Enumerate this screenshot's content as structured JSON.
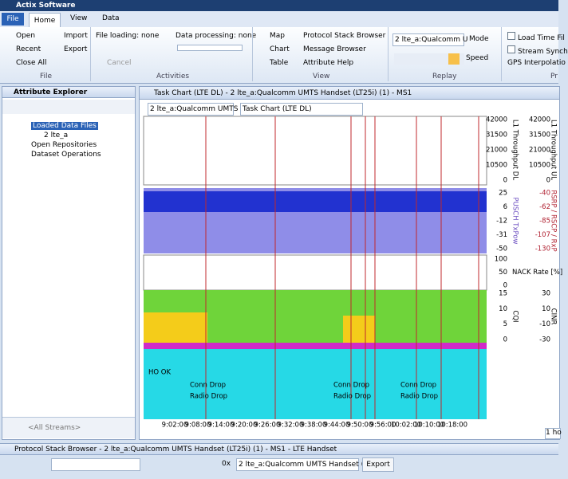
{
  "window": {
    "title": "Actix Software"
  },
  "tabs": [
    "File",
    "Home",
    "View",
    "Data"
  ],
  "ribbon": {
    "file": {
      "label": "File",
      "items": [
        "Open",
        "Import",
        "Recent",
        "Export",
        "Close All"
      ]
    },
    "activities": {
      "label": "Activities",
      "file_loading": "File loading: none",
      "data_processing": "Data processing: none",
      "cancel": "Cancel"
    },
    "view": {
      "label": "View",
      "items": [
        "Map",
        "Protocol Stack Browser",
        "Chart",
        "Message Browser",
        "Table",
        "Attribute Help"
      ]
    },
    "replay": {
      "label": "Replay",
      "stream": "2 lte_a:Qualcomm U",
      "mode": "Mode",
      "speed": "Speed"
    },
    "options": {
      "label": "Pr",
      "items": [
        "Load Time Fil",
        "Stream Synch",
        "GPS Interpolatio"
      ]
    }
  },
  "explorer": {
    "title": "Attribute Explorer",
    "tree": [
      "Loaded Data Files",
      "2 lte_a",
      "Open Repositories",
      "Dataset Operations"
    ],
    "filter": "<All Streams>"
  },
  "task_chart": {
    "title": "Task Chart (LTE DL) - 2 lte_a:Qualcomm UMTS Handset (LT25i) (1) - MS1",
    "stream": "2 lte_a:Qualcomm UMTS",
    "chart": "Task Chart (LTE DL)",
    "panels": [
      {
        "left_label": "L1 Throughput DL",
        "left_ticks": [
          42000,
          31500,
          21000,
          10500,
          0
        ],
        "right_label": "L1 Throughput UL",
        "right_ticks": [
          42000,
          31500,
          21000,
          10500,
          0
        ]
      },
      {
        "left_label": "PUSCH TxPow",
        "left_ticks": [
          25,
          6,
          -12,
          -31,
          -50
        ],
        "right_label": "RSRP / RSCP / RxP",
        "right_ticks": [
          -40,
          -62,
          -85,
          -107,
          -130
        ]
      },
      {
        "left_label": "NACK Rate [%]",
        "left_ticks": [
          100,
          50,
          0
        ]
      },
      {
        "left_label": "CQI",
        "left_ticks": [
          15,
          10,
          5,
          0
        ],
        "right_label": "CINR",
        "right_ticks": [
          30,
          10,
          -10,
          -30
        ]
      }
    ],
    "events": [
      "HO OK",
      "Conn Drop",
      "Radio Drop"
    ],
    "time_ticks": [
      "9:02:00",
      "9:08:00",
      "9:14:00",
      "9:20:00",
      "9:26:00",
      "9:32:00",
      "9:38:00",
      "9:44:00",
      "9:50:00",
      "9:56:00",
      "10:02:00",
      "10:10:00",
      "10:18:00"
    ],
    "side_field": "1 ho"
  },
  "protocol_browser": {
    "title": "Protocol Stack Browser - 2 lte_a:Qualcomm UMTS Handset (LT25i) (1) - MS1 - LTE Handset",
    "count": "0x",
    "stream": "2 lte_a:Qualcomm UMTS Handset (LT",
    "export": "Export"
  }
}
